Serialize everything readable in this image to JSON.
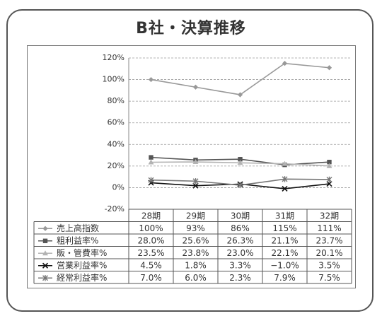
{
  "title": "B社・決算推移",
  "chart_data": {
    "type": "line",
    "categories": [
      "28期",
      "29期",
      "30期",
      "31期",
      "32期"
    ],
    "ylim": [
      -20,
      120
    ],
    "yticks": [
      "-20%",
      "0%",
      "20%",
      "40%",
      "60%",
      "80%",
      "100%",
      "120%"
    ],
    "ytick_values": [
      -20,
      0,
      20,
      40,
      60,
      80,
      100,
      120
    ],
    "grid": true,
    "series": [
      {
        "name": "売上高指数",
        "values": [
          100,
          93,
          86,
          115,
          111
        ],
        "labels": [
          "100%",
          "93%",
          "86%",
          "115%",
          "111%"
        ],
        "color": "#999999",
        "marker": "diamond"
      },
      {
        "name": "粗利益率%",
        "values": [
          28.0,
          25.6,
          26.3,
          21.1,
          23.7
        ],
        "labels": [
          "28.0%",
          "25.6%",
          "26.3%",
          "21.1%",
          "23.7%"
        ],
        "color": "#555555",
        "marker": "square"
      },
      {
        "name": "販・管費率%",
        "values": [
          23.5,
          23.8,
          23.0,
          22.1,
          20.1
        ],
        "labels": [
          "23.5%",
          "23.8%",
          "23.0%",
          "22.1%",
          "20.1%"
        ],
        "color": "#b3b3b3",
        "marker": "triangle"
      },
      {
        "name": "営業利益率%",
        "values": [
          4.5,
          1.8,
          3.3,
          -1.0,
          3.5
        ],
        "labels": [
          "4.5%",
          "1.8%",
          "3.3%",
          "−1.0%",
          "3.5%"
        ],
        "color": "#111111",
        "marker": "x"
      },
      {
        "name": "経常利益率%",
        "values": [
          7.0,
          6.0,
          2.3,
          7.9,
          7.5
        ],
        "labels": [
          "7.0%",
          "6.0%",
          "2.3%",
          "7.9%",
          "7.5%"
        ],
        "color": "#777777",
        "marker": "star"
      }
    ]
  }
}
